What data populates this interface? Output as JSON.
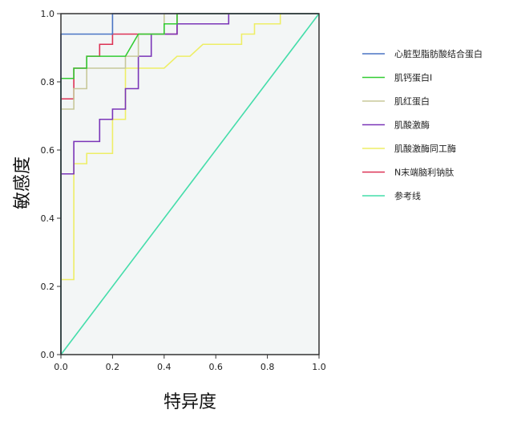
{
  "chart_data": {
    "type": "line",
    "title": "",
    "xlabel": "特异度",
    "ylabel": "敏感度",
    "xlim": [
      0,
      1
    ],
    "ylim": [
      0,
      1
    ],
    "x_ticks": [
      "0.0",
      "0.2",
      "0.4",
      "0.6",
      "0.8",
      "1.0"
    ],
    "y_ticks": [
      "0.0",
      "0.2",
      "0.4",
      "0.6",
      "0.8",
      "1.0"
    ],
    "grid": false,
    "legend_position": "right",
    "plot_background": "#f3f6f6",
    "series": [
      {
        "name": "心脏型脂肪酸结合蛋白",
        "color": "#4a74c4",
        "points": [
          [
            0,
            0
          ],
          [
            0,
            0.81
          ],
          [
            0,
            0.94
          ],
          [
            0.2,
            0.94
          ],
          [
            0.2,
            1.0
          ],
          [
            1.0,
            1.0
          ]
        ]
      },
      {
        "name": "肌钙蛋白I",
        "color": "#33cc33",
        "points": [
          [
            0,
            0
          ],
          [
            0,
            0.81
          ],
          [
            0.05,
            0.81
          ],
          [
            0.05,
            0.84
          ],
          [
            0.1,
            0.84
          ],
          [
            0.1,
            0.875
          ],
          [
            0.25,
            0.875
          ],
          [
            0.3,
            0.94
          ],
          [
            0.4,
            0.94
          ],
          [
            0.4,
            0.97
          ],
          [
            0.45,
            0.97
          ],
          [
            0.45,
            1.0
          ],
          [
            1.0,
            1.0
          ]
        ]
      },
      {
        "name": "肌红蛋白",
        "color": "#c8c89a",
        "points": [
          [
            0,
            0
          ],
          [
            0,
            0.72
          ],
          [
            0.05,
            0.72
          ],
          [
            0.05,
            0.78
          ],
          [
            0.1,
            0.78
          ],
          [
            0.1,
            0.84
          ],
          [
            0.25,
            0.84
          ],
          [
            0.25,
            0.875
          ],
          [
            0.3,
            0.875
          ],
          [
            0.3,
            0.94
          ],
          [
            0.4,
            0.94
          ],
          [
            0.4,
            1.0
          ],
          [
            1.0,
            1.0
          ]
        ]
      },
      {
        "name": "肌酸激酶",
        "color": "#7a35b8",
        "points": [
          [
            0,
            0
          ],
          [
            0,
            0.53
          ],
          [
            0.05,
            0.53
          ],
          [
            0.05,
            0.625
          ],
          [
            0.15,
            0.625
          ],
          [
            0.15,
            0.69
          ],
          [
            0.2,
            0.69
          ],
          [
            0.2,
            0.72
          ],
          [
            0.25,
            0.72
          ],
          [
            0.25,
            0.78
          ],
          [
            0.3,
            0.78
          ],
          [
            0.3,
            0.875
          ],
          [
            0.35,
            0.875
          ],
          [
            0.35,
            0.94
          ],
          [
            0.45,
            0.94
          ],
          [
            0.45,
            0.97
          ],
          [
            0.65,
            0.97
          ],
          [
            0.65,
            1.0
          ],
          [
            1.0,
            1.0
          ]
        ]
      },
      {
        "name": "肌酸激酶同工酶",
        "color": "#eeee66",
        "points": [
          [
            0,
            0
          ],
          [
            0,
            0.22
          ],
          [
            0.05,
            0.22
          ],
          [
            0.05,
            0.56
          ],
          [
            0.1,
            0.56
          ],
          [
            0.1,
            0.59
          ],
          [
            0.2,
            0.59
          ],
          [
            0.2,
            0.69
          ],
          [
            0.25,
            0.69
          ],
          [
            0.25,
            0.84
          ],
          [
            0.4,
            0.84
          ],
          [
            0.45,
            0.875
          ],
          [
            0.5,
            0.875
          ],
          [
            0.55,
            0.91
          ],
          [
            0.7,
            0.91
          ],
          [
            0.7,
            0.94
          ],
          [
            0.75,
            0.94
          ],
          [
            0.75,
            0.97
          ],
          [
            0.85,
            0.97
          ],
          [
            0.85,
            1.0
          ],
          [
            1.0,
            1.0
          ]
        ]
      },
      {
        "name": "N末端脑利钠肽",
        "color": "#dd3355",
        "points": [
          [
            0,
            0
          ],
          [
            0,
            0.75
          ],
          [
            0.05,
            0.75
          ],
          [
            0.05,
            0.84
          ],
          [
            0.1,
            0.84
          ],
          [
            0.1,
            0.875
          ],
          [
            0.15,
            0.875
          ],
          [
            0.15,
            0.91
          ],
          [
            0.2,
            0.91
          ],
          [
            0.2,
            0.94
          ],
          [
            0.45,
            0.94
          ],
          [
            0.45,
            1.0
          ],
          [
            1.0,
            1.0
          ]
        ]
      },
      {
        "name": "参考线",
        "color": "#44ddaa",
        "points": [
          [
            0,
            0
          ],
          [
            1,
            1
          ]
        ]
      }
    ]
  }
}
